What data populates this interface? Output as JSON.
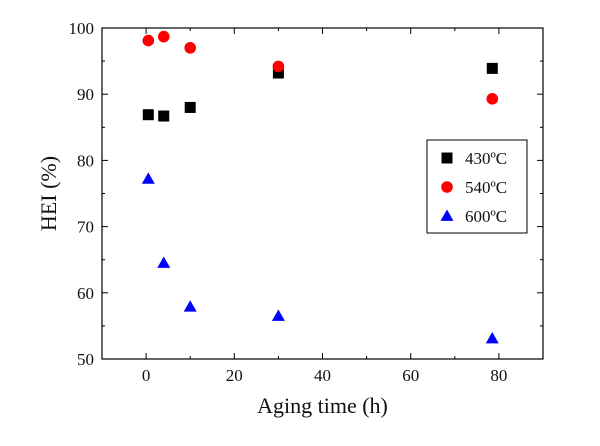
{
  "chart_data": {
    "type": "scatter",
    "xlabel": "Aging time (h)",
    "ylabel": "HEI (%)",
    "xlim": [
      -10,
      90
    ],
    "ylim": [
      50,
      100
    ],
    "xticks": [
      0,
      20,
      40,
      60,
      80
    ],
    "yticks": [
      50,
      60,
      70,
      80,
      90,
      100
    ],
    "grid": false,
    "legend_position": "right",
    "series": [
      {
        "name": "430ºC",
        "marker": "square",
        "color": "#000000",
        "x": [
          0.5,
          4,
          10,
          30,
          78.5
        ],
        "y": [
          86.9,
          86.7,
          88.0,
          93.2,
          93.9
        ]
      },
      {
        "name": "540ºC",
        "marker": "circle",
        "color": "#ff0000",
        "x": [
          0.5,
          4,
          10,
          30,
          78.5
        ],
        "y": [
          98.1,
          98.7,
          97.0,
          94.2,
          89.3
        ]
      },
      {
        "name": "600ºC",
        "marker": "triangle",
        "color": "#0000ff",
        "x": [
          0.5,
          4,
          10,
          30,
          78.5
        ],
        "y": [
          77.2,
          64.5,
          57.9,
          56.5,
          53.1
        ]
      }
    ]
  }
}
